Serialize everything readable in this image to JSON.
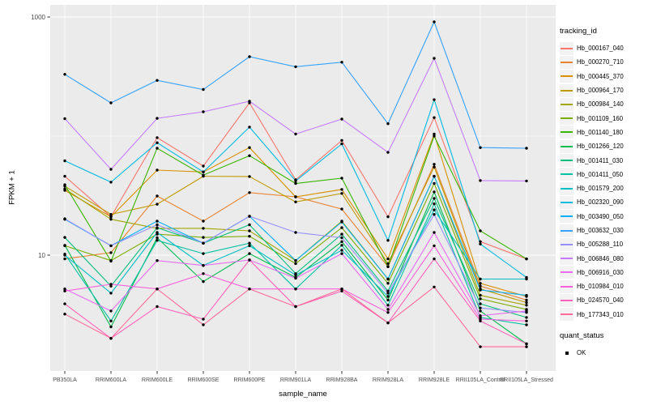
{
  "figure": {
    "background": "#ffffff",
    "panel_background": "#EBEBEB",
    "gridline_color": "#FFFFFF",
    "tick_label_color": "#4D4D4D",
    "point_color": "#000000"
  },
  "axes": {
    "y_title": "FPKM + 1",
    "x_title": "sample_name",
    "y_tick_labels": [
      "1000",
      "10"
    ],
    "y_tick_values": [
      1000,
      10
    ],
    "y_minor_values": [
      100
    ],
    "y_scale": "log10"
  },
  "legend": {
    "tracking_title": "tracking_id",
    "quant_title": "quant_status",
    "quant_items": [
      {
        "label": "OK",
        "marker": "black-square-point"
      }
    ]
  },
  "chart_data": {
    "type": "line",
    "title": "",
    "xlabel": "sample_name",
    "ylabel": "FPKM + 1",
    "y_scale": "log10",
    "ylim": [
      1,
      1200
    ],
    "grid": "ggplot-gray-panel-white-grid",
    "legend_position": "right",
    "point_marker": "black-dot-all-vertices",
    "categories": [
      "PB350LA",
      "RRIM600LA",
      "RRIM600LE",
      "RRIM600SE",
      "RRIM600PE",
      "RRIM901LA",
      "RRIM928BA",
      "RRIM928LA",
      "RRIM928LE",
      "RRII105LA_Control",
      "RRII105LA_Stressed"
    ],
    "series": [
      {
        "name": "Hb_000167_040",
        "color": "#F8766D",
        "values": [
          46,
          21,
          97,
          56,
          190,
          43,
          92,
          21,
          143,
          13,
          9.3
        ]
      },
      {
        "name": "Hb_000270_710",
        "color": "#EA8331",
        "values": [
          9.3,
          10.5,
          31.4,
          19.3,
          33.5,
          30.9,
          24.4,
          8.0,
          58,
          5.5,
          4.2
        ]
      },
      {
        "name": "Hb_000445_370",
        "color": "#D89000",
        "values": [
          35,
          21,
          51.8,
          50,
          80,
          30.9,
          35.6,
          9.3,
          104,
          5.8,
          4.5
        ]
      },
      {
        "name": "Hb_000964_170",
        "color": "#C09B00",
        "values": [
          38,
          22,
          26.8,
          46,
          45.8,
          28,
          33,
          8.5,
          55,
          5.2,
          4.0
        ]
      },
      {
        "name": "Hb_000984_140",
        "color": "#A3A500",
        "values": [
          36,
          20,
          16.8,
          16.8,
          16.0,
          9.0,
          19.3,
          6.3,
          46,
          4.6,
          3.8
        ]
      },
      {
        "name": "Hb_001109_160",
        "color": "#7CAE00",
        "values": [
          12.0,
          9.0,
          15.0,
          14.1,
          14.4,
          8.5,
          17.0,
          5.8,
          40,
          4.3,
          3.5
        ]
      },
      {
        "name": "Hb_001140_180",
        "color": "#39B600",
        "values": [
          39,
          8.9,
          79,
          47,
          68.5,
          40,
          44.3,
          8.0,
          100,
          16,
          9.3
        ]
      },
      {
        "name": "Hb_001266_120",
        "color": "#00BB4E",
        "values": [
          12.1,
          2.5,
          14.0,
          6.0,
          10.3,
          6.5,
          13.0,
          4.2,
          34,
          3.4,
          1.8
        ]
      },
      {
        "name": "Hb_001411_030",
        "color": "#00BF7D",
        "values": [
          14.1,
          5.5,
          17.0,
          12.6,
          18.0,
          7.0,
          15.0,
          5.0,
          30,
          3.9,
          3.0
        ]
      },
      {
        "name": "Hb_001411_050",
        "color": "#00C1A3",
        "values": [
          10.2,
          2.8,
          13.3,
          10.3,
          12.6,
          5.2,
          12.1,
          3.8,
          27,
          3.0,
          2.6
        ]
      },
      {
        "name": "Hb_001579_200",
        "color": "#00BFC4",
        "values": [
          10.0,
          4.8,
          15.5,
          8.2,
          12.0,
          6.8,
          11.0,
          4.5,
          24,
          6.3,
          6.3
        ]
      },
      {
        "name": "Hb_002320_090",
        "color": "#00BAE0",
        "values": [
          62,
          41,
          88,
          50,
          119,
          42,
          86,
          13.3,
          202,
          12.4,
          6.5
        ]
      },
      {
        "name": "Hb_003490_050",
        "color": "#00B0F6",
        "values": [
          20,
          12,
          19.3,
          12.6,
          21.2,
          9.0,
          19.0,
          6.3,
          46,
          5.1,
          4.6
        ]
      },
      {
        "name": "Hb_003632_030",
        "color": "#35A2FF",
        "values": [
          330,
          190,
          294,
          246,
          464,
          382,
          417,
          127,
          910,
          80,
          79
        ]
      },
      {
        "name": "Hb_005288_110",
        "color": "#9590FF",
        "values": [
          20.2,
          12.0,
          18.0,
          12.6,
          21.2,
          15.5,
          14.0,
          4.8,
          22,
          3.6,
          3.3
        ]
      },
      {
        "name": "Hb_006846_080",
        "color": "#C77CFF",
        "values": [
          140,
          52.6,
          141,
          160,
          196,
          104,
          139,
          73,
          450,
          42.3,
          42
        ]
      },
      {
        "name": "Hb_006916_030",
        "color": "#E76BF3",
        "values": [
          5.2,
          3.4,
          9.0,
          8.2,
          9.1,
          6.4,
          10.3,
          3.5,
          15.5,
          3.1,
          3.4
        ]
      },
      {
        "name": "Hb_010984_010",
        "color": "#FA62DB",
        "values": [
          5.0,
          5.7,
          5.2,
          7.0,
          5.2,
          5.2,
          5.2,
          3.3,
          12.0,
          2.9,
          2.8
        ]
      },
      {
        "name": "Hb_024570_040",
        "color": "#FF62BC",
        "values": [
          3.9,
          2.0,
          3.7,
          2.9,
          9.1,
          3.7,
          5.0,
          2.7,
          9.3,
          2.8,
          1.8
        ]
      },
      {
        "name": "Hb_177343_010",
        "color": "#FF6A98",
        "values": [
          3.2,
          2.0,
          5.2,
          2.6,
          5.2,
          3.7,
          5.2,
          2.7,
          5.4,
          1.7,
          1.7
        ]
      }
    ]
  }
}
